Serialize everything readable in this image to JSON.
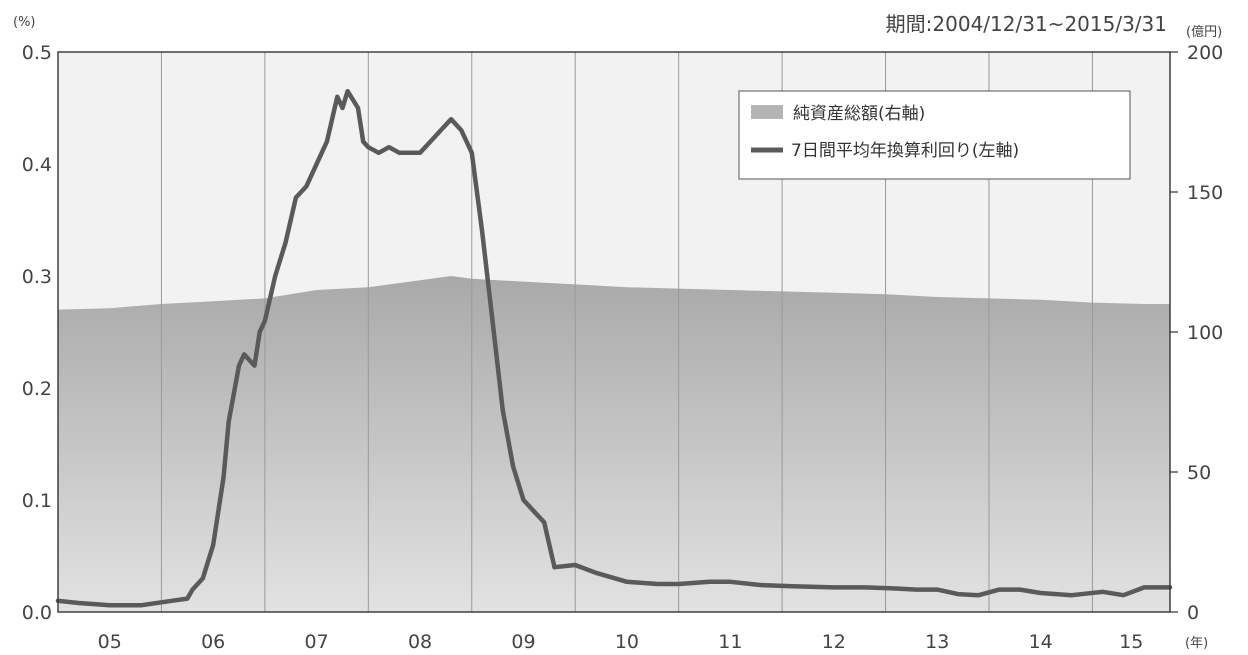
{
  "chart_data": {
    "type": "area+line",
    "period_label": "期間:2004/12/31~2015/3/31",
    "left_axis": {
      "unit": "(%)",
      "ylim": [
        0,
        0.5
      ],
      "ticks": [
        "0.0",
        "0.1",
        "0.2",
        "0.3",
        "0.4",
        "0.5"
      ]
    },
    "right_axis": {
      "unit": "(億円)",
      "ylim": [
        0,
        200
      ],
      "ticks": [
        "0",
        "50",
        "100",
        "150",
        "200"
      ]
    },
    "x_axis": {
      "unit": "(年)",
      "range": [
        2004.5,
        2015.25
      ],
      "ticks": [
        "05",
        "06",
        "07",
        "08",
        "09",
        "10",
        "11",
        "12",
        "13",
        "14",
        "15"
      ],
      "year_dividers": [
        2005.5,
        2006.5,
        2007.5,
        2008.5,
        2009.5,
        2010.5,
        2011.5,
        2012.5,
        2013.5,
        2014.5
      ]
    },
    "grid": "vertical year dividers",
    "legend": {
      "position": "top-right",
      "items": [
        {
          "label": "純資産総額(右軸)",
          "kind": "area",
          "axis": "right"
        },
        {
          "label": "7日間平均年換算利回り(左軸)",
          "kind": "line",
          "axis": "left"
        }
      ]
    },
    "colors": {
      "plot_bg": "#f2f2f2",
      "area_top": "#a9a9a9",
      "area_bottom": "#e2e2e2",
      "line": "#5a5a5a",
      "frame": "#333333",
      "divider": "#9a9a9a"
    },
    "series": [
      {
        "name": "純資産総額(右軸)",
        "axis": "right",
        "x": [
          2004.5,
          2005.0,
          2005.5,
          2006.0,
          2006.5,
          2007.0,
          2007.5,
          2008.0,
          2008.3,
          2008.5,
          2009.0,
          2009.5,
          2010.0,
          2010.5,
          2011.0,
          2011.5,
          2012.0,
          2012.5,
          2013.0,
          2013.5,
          2014.0,
          2014.5,
          2015.0,
          2015.25
        ],
        "values": [
          108,
          108.5,
          110,
          111,
          112,
          115,
          116,
          118.5,
          120,
          119,
          118,
          117,
          116,
          115.5,
          115,
          114.5,
          114,
          113.5,
          112.5,
          112,
          111.5,
          110.5,
          110,
          110
        ]
      },
      {
        "name": "7日間平均年換算利回り(左軸)",
        "axis": "left",
        "x": [
          2004.5,
          2004.7,
          2005.0,
          2005.3,
          2005.6,
          2005.75,
          2005.8,
          2005.9,
          2006.0,
          2006.1,
          2006.15,
          2006.25,
          2006.3,
          2006.4,
          2006.45,
          2006.5,
          2006.6,
          2006.7,
          2006.8,
          2006.9,
          2007.0,
          2007.1,
          2007.2,
          2007.25,
          2007.3,
          2007.4,
          2007.45,
          2007.5,
          2007.6,
          2007.7,
          2007.8,
          2008.0,
          2008.1,
          2008.2,
          2008.3,
          2008.4,
          2008.5,
          2008.6,
          2008.7,
          2008.8,
          2008.9,
          2009.0,
          2009.1,
          2009.2,
          2009.3,
          2009.5,
          2009.7,
          2010.0,
          2010.3,
          2010.5,
          2010.8,
          2011.0,
          2011.3,
          2011.6,
          2012.0,
          2012.3,
          2012.6,
          2012.8,
          2013.0,
          2013.2,
          2013.4,
          2013.6,
          2013.8,
          2014.0,
          2014.3,
          2014.6,
          2014.8,
          2015.0,
          2015.25
        ],
        "values": [
          0.01,
          0.008,
          0.006,
          0.006,
          0.01,
          0.012,
          0.02,
          0.03,
          0.06,
          0.12,
          0.17,
          0.22,
          0.23,
          0.22,
          0.25,
          0.26,
          0.3,
          0.33,
          0.37,
          0.38,
          0.4,
          0.42,
          0.46,
          0.45,
          0.465,
          0.45,
          0.42,
          0.415,
          0.41,
          0.415,
          0.41,
          0.41,
          0.42,
          0.43,
          0.44,
          0.43,
          0.41,
          0.34,
          0.26,
          0.18,
          0.13,
          0.1,
          0.09,
          0.08,
          0.04,
          0.042,
          0.035,
          0.027,
          0.025,
          0.025,
          0.027,
          0.027,
          0.024,
          0.023,
          0.022,
          0.022,
          0.021,
          0.02,
          0.02,
          0.016,
          0.015,
          0.02,
          0.02,
          0.017,
          0.015,
          0.018,
          0.015,
          0.022,
          0.022
        ]
      }
    ]
  }
}
